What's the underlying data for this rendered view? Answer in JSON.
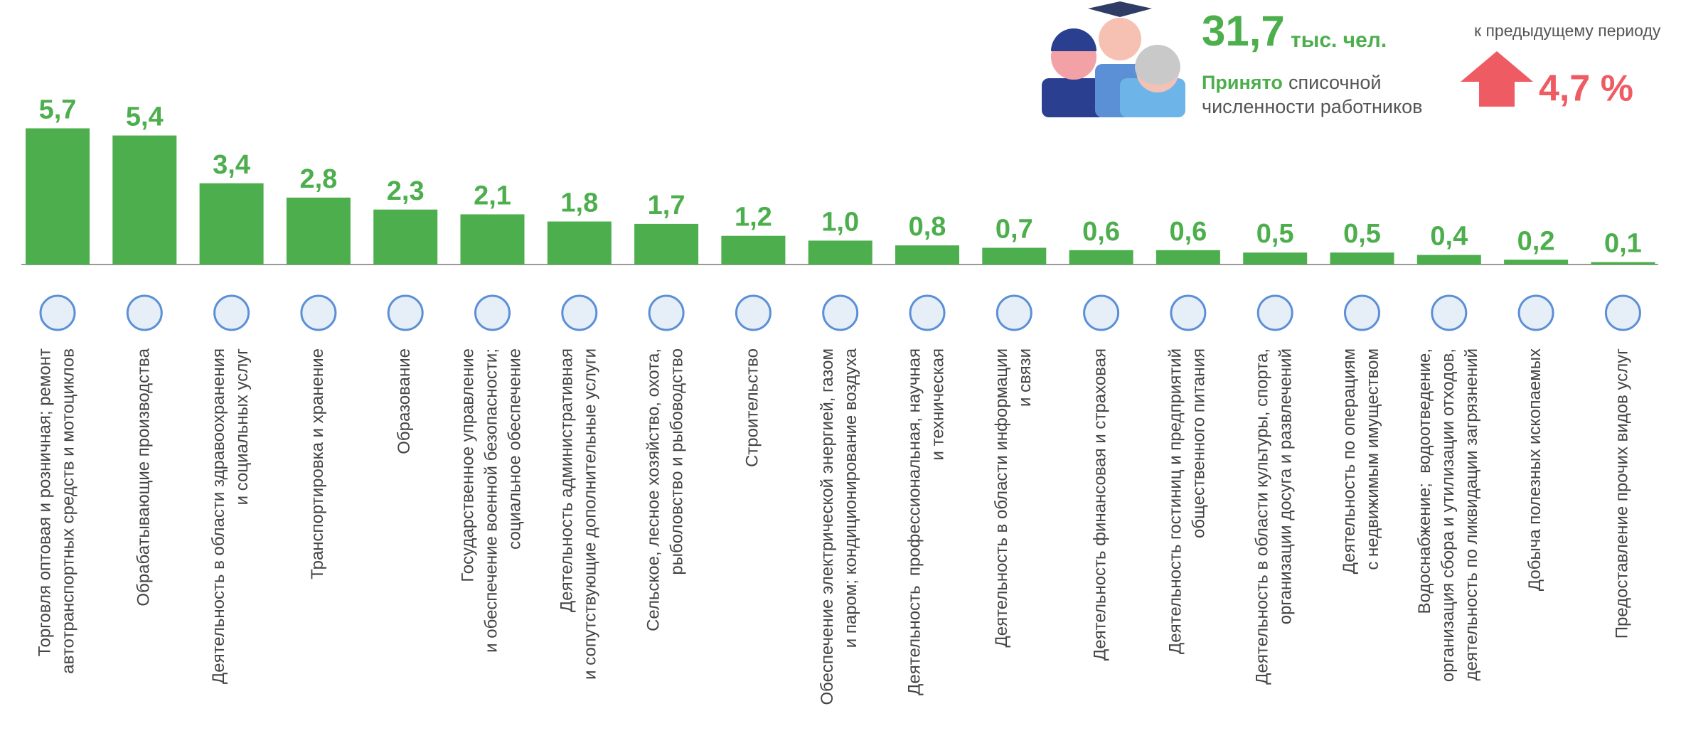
{
  "chart_data": {
    "type": "bar",
    "color": "#4cae4c",
    "categories": [
      "Торговля оптовая и розничная; ремонт\nавтотранспортных средств и мотоциклов",
      "Обрабатывающие производства",
      "Деятельность в области здравоохранения\nи социальных услуг",
      "Транспортировка и хранение",
      "Образование",
      "Государственное управление\nи обеспечение военной безопасности;\nсоциальное обеспечение",
      "Деятельность административная\nи сопутствующие дополнительные услуги",
      "Сельское, лесное хозяйство, охота,\nрыболовство и рыбоводство",
      "Строительство",
      "Обеспечение электрической энергией, газом\nи паром; кондиционирование воздуха",
      "Деятельность  профессиональная, научная\nи техническая",
      "Деятельность в области информации\nи связи",
      "Деятельность финансовая и страховая",
      "Деятельность гостиниц и предприятий\nобщественного питания",
      "Деятельность в области культуры, спорта,\nорганизации досуга и развлечений",
      "Деятельность по операциям\nс недвижимым имуществом",
      "Водоснабжение;  водоотведение,\nорганизация сбора и утилизации отходов,\nдеятельность по ликвидации загрязнений",
      "Добыча полезных ископаемых",
      "Предоставление прочих видов услуг"
    ],
    "values": [
      5.7,
      5.4,
      3.4,
      2.8,
      2.3,
      2.1,
      1.8,
      1.7,
      1.2,
      1.0,
      0.8,
      0.7,
      0.6,
      0.6,
      0.5,
      0.5,
      0.4,
      0.2,
      0.1
    ],
    "value_labels": [
      "5,7",
      "5,4",
      "3,4",
      "2,8",
      "2,3",
      "2,1",
      "1,8",
      "1,7",
      "1,2",
      "1,0",
      "0,8",
      "0,7",
      "0,6",
      "0,6",
      "0,5",
      "0,5",
      "0,4",
      "0,2",
      "0,1"
    ]
  },
  "header": {
    "total_value": "31,7",
    "total_unit": "тыс. чел.",
    "accepted": "Принято",
    "accepted_rest": "списочной",
    "accepted_line2": "численности работников",
    "change_caption": "к предыдущему периоду",
    "change_value": "4,7 %"
  }
}
